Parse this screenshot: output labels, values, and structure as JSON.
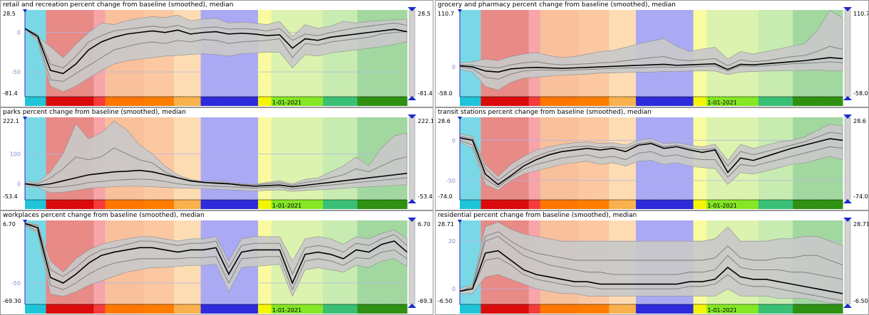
{
  "dashboard": {
    "period_colors": [
      "#7ad8e6",
      "#e88a86",
      "#f7a5a8",
      "#f9c09c",
      "#fbc8a2",
      "#fddcb4",
      "#a9aaf3",
      "#fafb9f",
      "#dcf2af",
      "#c7ebb0",
      "#a2d7a0"
    ],
    "bar_colors": [
      "#1fc4d8",
      "#dc0b0b",
      "#f53c3c",
      "#ff7700",
      "#ff7e00",
      "#f8b14d",
      "#2d2bdb",
      "#f4f504",
      "#84e624",
      "#39c074",
      "#2e9112"
    ],
    "period_fractions": [
      0,
      0.055,
      0.18,
      0.21,
      0.31,
      0.39,
      0.46,
      0.61,
      0.645,
      0.78,
      0.87,
      1.0
    ],
    "date_label": "1-01-2021",
    "date_label_fraction": 0.645,
    "band_color": "#c9c9c9",
    "median_color": "#000000",
    "grid_color": "#b4b4e6"
  },
  "panels": [
    {
      "title": "retail and recreation percent change from baseline (smoothed), median",
      "max_label": "28.5",
      "min_label": "-81.4",
      "ticks": [
        "0",
        "-50"
      ],
      "chart_data": {
        "type": "area",
        "ylim": [
          -81.4,
          28.5
        ],
        "yticks": [
          0,
          -50
        ],
        "upper": [
          5,
          -5,
          -18,
          -32,
          -15,
          0,
          12,
          10,
          15,
          18,
          20,
          19,
          22,
          15,
          17,
          18,
          12,
          13,
          12,
          10,
          14,
          -5,
          10,
          5,
          8,
          14,
          12,
          14,
          15,
          16,
          17
        ],
        "lower": [
          5,
          -12,
          -68,
          -75,
          -68,
          -58,
          -48,
          -40,
          -36,
          -34,
          -32,
          -30,
          -29,
          -28,
          -27,
          -28,
          -30,
          -27,
          -26,
          -25,
          -25,
          -45,
          -28,
          -30,
          -26,
          -24,
          -22,
          -20,
          -18,
          -15,
          -12
        ],
        "median": [
          5,
          -5,
          -48,
          -52,
          -40,
          -22,
          -12,
          -6,
          -2,
          0,
          2,
          0,
          3,
          -2,
          0,
          1,
          -2,
          -1,
          -2,
          -4,
          -3,
          -20,
          -8,
          -10,
          -6,
          -4,
          -2,
          0,
          2,
          4,
          1
        ],
        "extra": [
          [
            5,
            -8,
            -60,
            -62,
            -52,
            -42,
            -32,
            -22,
            -18,
            -14,
            -12,
            -14,
            -10,
            -12,
            -9,
            -10,
            -14,
            -12,
            -11,
            -10,
            -8,
            -32,
            -14,
            -16,
            -12,
            -10,
            -8,
            -6,
            -2,
            0,
            1
          ],
          [
            5,
            -3,
            -40,
            -45,
            -30,
            -12,
            -4,
            2,
            4,
            6,
            8,
            6,
            9,
            4,
            6,
            7,
            4,
            5,
            4,
            2,
            5,
            -10,
            -2,
            -4,
            0,
            3,
            6,
            8,
            10,
            12,
            9
          ]
        ]
      }
    },
    {
      "title": "grocery and pharmacy percent change from baseline (smoothed), median",
      "max_label": "110.7",
      "min_label": "-58.0",
      "ticks": [
        "0"
      ],
      "chart_data": {
        "type": "area",
        "ylim": [
          -58.0,
          110.7
        ],
        "yticks": [
          0
        ],
        "upper": [
          8,
          10,
          15,
          12,
          20,
          25,
          28,
          22,
          18,
          20,
          25,
          30,
          32,
          38,
          45,
          50,
          55,
          40,
          30,
          35,
          38,
          15,
          30,
          25,
          30,
          35,
          40,
          45,
          70,
          110,
          95
        ],
        "lower": [
          -5,
          -10,
          -38,
          -45,
          -30,
          -22,
          -20,
          -18,
          -16,
          -15,
          -14,
          -12,
          -12,
          -11,
          -10,
          -10,
          -9,
          -9,
          -8,
          -8,
          -8,
          -15,
          -10,
          -9,
          -8,
          -8,
          -7,
          -7,
          -6,
          -8,
          -8
        ],
        "median": [
          2,
          0,
          -8,
          -10,
          -4,
          -2,
          -1,
          -2,
          -3,
          -2,
          -1,
          0,
          1,
          2,
          3,
          4,
          5,
          3,
          4,
          5,
          6,
          -5,
          5,
          4,
          6,
          8,
          10,
          12,
          15,
          18,
          16
        ],
        "extra": [
          [
            0,
            -4,
            -20,
            -24,
            -14,
            -8,
            -6,
            -6,
            -7,
            -6,
            -5,
            -4,
            -3,
            -2,
            -2,
            -1,
            0,
            -1,
            0,
            1,
            2,
            -8,
            2,
            1,
            2,
            4,
            6,
            7,
            8,
            10,
            8
          ],
          [
            4,
            3,
            0,
            -2,
            4,
            8,
            10,
            6,
            4,
            5,
            6,
            8,
            9,
            12,
            15,
            18,
            20,
            14,
            12,
            14,
            16,
            2,
            14,
            10,
            12,
            16,
            20,
            22,
            30,
            40,
            34
          ]
        ]
      }
    },
    {
      "title": "parks percent change from baseline (smoothed), median",
      "max_label": "222.1",
      "min_label": "-53.4",
      "ticks": [
        "100",
        "0"
      ],
      "chart_data": {
        "type": "area",
        "ylim": [
          -53.4,
          222.1
        ],
        "yticks": [
          100,
          0
        ],
        "upper": [
          8,
          5,
          40,
          100,
          200,
          150,
          170,
          210,
          180,
          130,
          100,
          60,
          30,
          15,
          8,
          10,
          5,
          0,
          -2,
          5,
          10,
          0,
          15,
          20,
          40,
          60,
          90,
          60,
          120,
          160,
          170
        ],
        "lower": [
          -8,
          -12,
          -30,
          -28,
          -22,
          -15,
          -12,
          -10,
          -8,
          -8,
          -10,
          -12,
          -14,
          -15,
          -16,
          -18,
          -20,
          -22,
          -24,
          -22,
          -20,
          -25,
          -22,
          -20,
          -18,
          -15,
          -12,
          -10,
          -8,
          -5,
          -3
        ],
        "median": [
          0,
          -5,
          0,
          10,
          20,
          30,
          35,
          40,
          42,
          45,
          40,
          30,
          20,
          10,
          5,
          2,
          0,
          -5,
          -8,
          -6,
          -4,
          -10,
          -5,
          0,
          5,
          10,
          15,
          20,
          25,
          30,
          35
        ],
        "extra": [
          [
            2,
            0,
            20,
            50,
            90,
            80,
            90,
            120,
            100,
            80,
            70,
            40,
            20,
            8,
            4,
            5,
            2,
            -2,
            -4,
            0,
            4,
            -5,
            5,
            10,
            20,
            30,
            50,
            40,
            60,
            80,
            90
          ],
          [
            -2,
            -8,
            -12,
            -10,
            -4,
            4,
            8,
            12,
            14,
            16,
            14,
            8,
            0,
            -4,
            -6,
            -8,
            -10,
            -12,
            -14,
            -12,
            -10,
            -18,
            -12,
            -8,
            -4,
            0,
            4,
            8,
            12,
            16,
            20
          ]
        ]
      }
    },
    {
      "title": "transit stations percent change from baseline (smoothed), median",
      "max_label": "28.6",
      "min_label": "-74.0",
      "ticks": [
        "0",
        "-50"
      ],
      "chart_data": {
        "type": "area",
        "ylim": [
          -74.0,
          28.6
        ],
        "yticks": [
          0,
          -50
        ],
        "upper": [
          8,
          5,
          -30,
          -45,
          -30,
          -20,
          -12,
          -8,
          -5,
          -3,
          -2,
          -4,
          -3,
          -6,
          0,
          2,
          -4,
          -3,
          -6,
          -8,
          -5,
          -25,
          -5,
          -10,
          -6,
          -2,
          0,
          4,
          12,
          20,
          18
        ],
        "lower": [
          -2,
          -10,
          -55,
          -62,
          -50,
          -42,
          -38,
          -34,
          -30,
          -28,
          -26,
          -30,
          -28,
          -32,
          -26,
          -25,
          -30,
          -28,
          -32,
          -34,
          -35,
          -55,
          -40,
          -42,
          -38,
          -34,
          -30,
          -28,
          -24,
          -20,
          -24
        ],
        "median": [
          3,
          0,
          -42,
          -55,
          -44,
          -32,
          -24,
          -18,
          -14,
          -12,
          -10,
          -12,
          -10,
          -14,
          -6,
          -4,
          -10,
          -8,
          -12,
          -15,
          -12,
          -40,
          -22,
          -25,
          -20,
          -15,
          -10,
          -6,
          -2,
          2,
          0
        ],
        "extra": [
          [
            5,
            2,
            -35,
            -50,
            -38,
            -28,
            -20,
            -14,
            -10,
            -8,
            -7,
            -9,
            -8,
            -10,
            -4,
            -2,
            -8,
            -6,
            -10,
            -12,
            -10,
            -32,
            -14,
            -18,
            -14,
            -10,
            -6,
            -2,
            4,
            10,
            8
          ],
          [
            0,
            -6,
            -48,
            -58,
            -46,
            -36,
            -30,
            -26,
            -22,
            -20,
            -18,
            -22,
            -20,
            -24,
            -16,
            -14,
            -20,
            -18,
            -22,
            -24,
            -24,
            -46,
            -30,
            -32,
            -28,
            -24,
            -20,
            -16,
            -12,
            -8,
            -10
          ]
        ]
      }
    },
    {
      "title": "workplaces percent change from baseline (smoothed), median",
      "max_label": "6.70",
      "min_label": "-69.30",
      "ticks": [
        "-50"
      ],
      "chart_data": {
        "type": "area",
        "ylim": [
          -69.3,
          6.7
        ],
        "yticks": [
          -50
        ],
        "upper": [
          5,
          3,
          -30,
          -40,
          -28,
          -20,
          -15,
          -12,
          -10,
          -8,
          -8,
          -10,
          -12,
          -10,
          -10,
          -8,
          -30,
          -10,
          -8,
          -8,
          -8,
          -30,
          -10,
          -8,
          -10,
          -15,
          -8,
          -10,
          -5,
          -2,
          -10
        ],
        "lower": [
          2,
          -5,
          -60,
          -62,
          -58,
          -52,
          -48,
          -44,
          -40,
          -38,
          -36,
          -36,
          -35,
          -34,
          -34,
          -33,
          -58,
          -36,
          -35,
          -34,
          -33,
          -62,
          -38,
          -36,
          -38,
          -40,
          -34,
          -36,
          -30,
          -28,
          -35
        ],
        "median": [
          4,
          0,
          -45,
          -50,
          -42,
          -32,
          -25,
          -22,
          -20,
          -18,
          -18,
          -20,
          -22,
          -20,
          -20,
          -18,
          -42,
          -22,
          -20,
          -20,
          -20,
          -50,
          -24,
          -22,
          -24,
          -28,
          -20,
          -22,
          -15,
          -12,
          -22
        ],
        "extra": [
          [
            4,
            2,
            -38,
            -44,
            -36,
            -26,
            -20,
            -18,
            -15,
            -12,
            -12,
            -14,
            -16,
            -14,
            -14,
            -12,
            -36,
            -16,
            -14,
            -14,
            -14,
            -42,
            -18,
            -16,
            -18,
            -22,
            -14,
            -16,
            -10,
            -6,
            -16
          ],
          [
            3,
            -3,
            -52,
            -56,
            -50,
            -42,
            -36,
            -32,
            -30,
            -28,
            -28,
            -28,
            -28,
            -27,
            -27,
            -26,
            -50,
            -28,
            -27,
            -26,
            -26,
            -56,
            -30,
            -28,
            -30,
            -34,
            -27,
            -28,
            -22,
            -20,
            -28
          ]
        ]
      }
    },
    {
      "title": "residential percent change from baseline (smoothed), median",
      "max_label": "28.71",
      "min_label": "-6.50",
      "ticks": [
        "20",
        "0"
      ],
      "chart_data": {
        "type": "area",
        "ylim": [
          -6.5,
          28.71
        ],
        "yticks": [
          20,
          0
        ],
        "upper": [
          0,
          2,
          26,
          28,
          25,
          23,
          22,
          21,
          20,
          20,
          20,
          20,
          20,
          20,
          20,
          20,
          20,
          20,
          20,
          20,
          21,
          26,
          20,
          20,
          20,
          21,
          21,
          22,
          22,
          20,
          18
        ],
        "lower": [
          -2,
          -2,
          5,
          6,
          4,
          2,
          0,
          -1,
          -2,
          -2,
          -3,
          -3,
          -3,
          -3,
          -3,
          -3,
          -3,
          -3,
          -3,
          -3,
          -3,
          0,
          -3,
          -3,
          -3,
          -4,
          -4,
          -4,
          -5,
          -6,
          -6
        ],
        "median": [
          -1,
          0,
          15,
          16,
          12,
          8,
          6,
          5,
          4,
          3,
          3,
          2,
          2,
          2,
          2,
          2,
          2,
          2,
          3,
          3,
          4,
          9,
          5,
          4,
          4,
          3,
          2,
          1,
          0,
          -1,
          -2
        ],
        "extra": [
          [
            -1,
            1,
            20,
            22,
            18,
            14,
            12,
            10,
            9,
            8,
            7,
            7,
            6,
            6,
            6,
            6,
            6,
            6,
            7,
            7,
            8,
            14,
            9,
            8,
            8,
            8,
            7,
            7,
            6,
            5,
            4
          ],
          [
            -1,
            0,
            12,
            13,
            10,
            6,
            4,
            3,
            2,
            1,
            1,
            0,
            0,
            0,
            0,
            0,
            0,
            0,
            1,
            1,
            2,
            6,
            2,
            1,
            1,
            0,
            -1,
            -2,
            -3,
            -4,
            -5
          ],
          [
            -1,
            1,
            22,
            24,
            20,
            17,
            15,
            14,
            13,
            12,
            12,
            12,
            12,
            12,
            12,
            12,
            12,
            12,
            12,
            12,
            13,
            18,
            13,
            12,
            12,
            13,
            13,
            14,
            14,
            12,
            10
          ]
        ]
      }
    }
  ]
}
